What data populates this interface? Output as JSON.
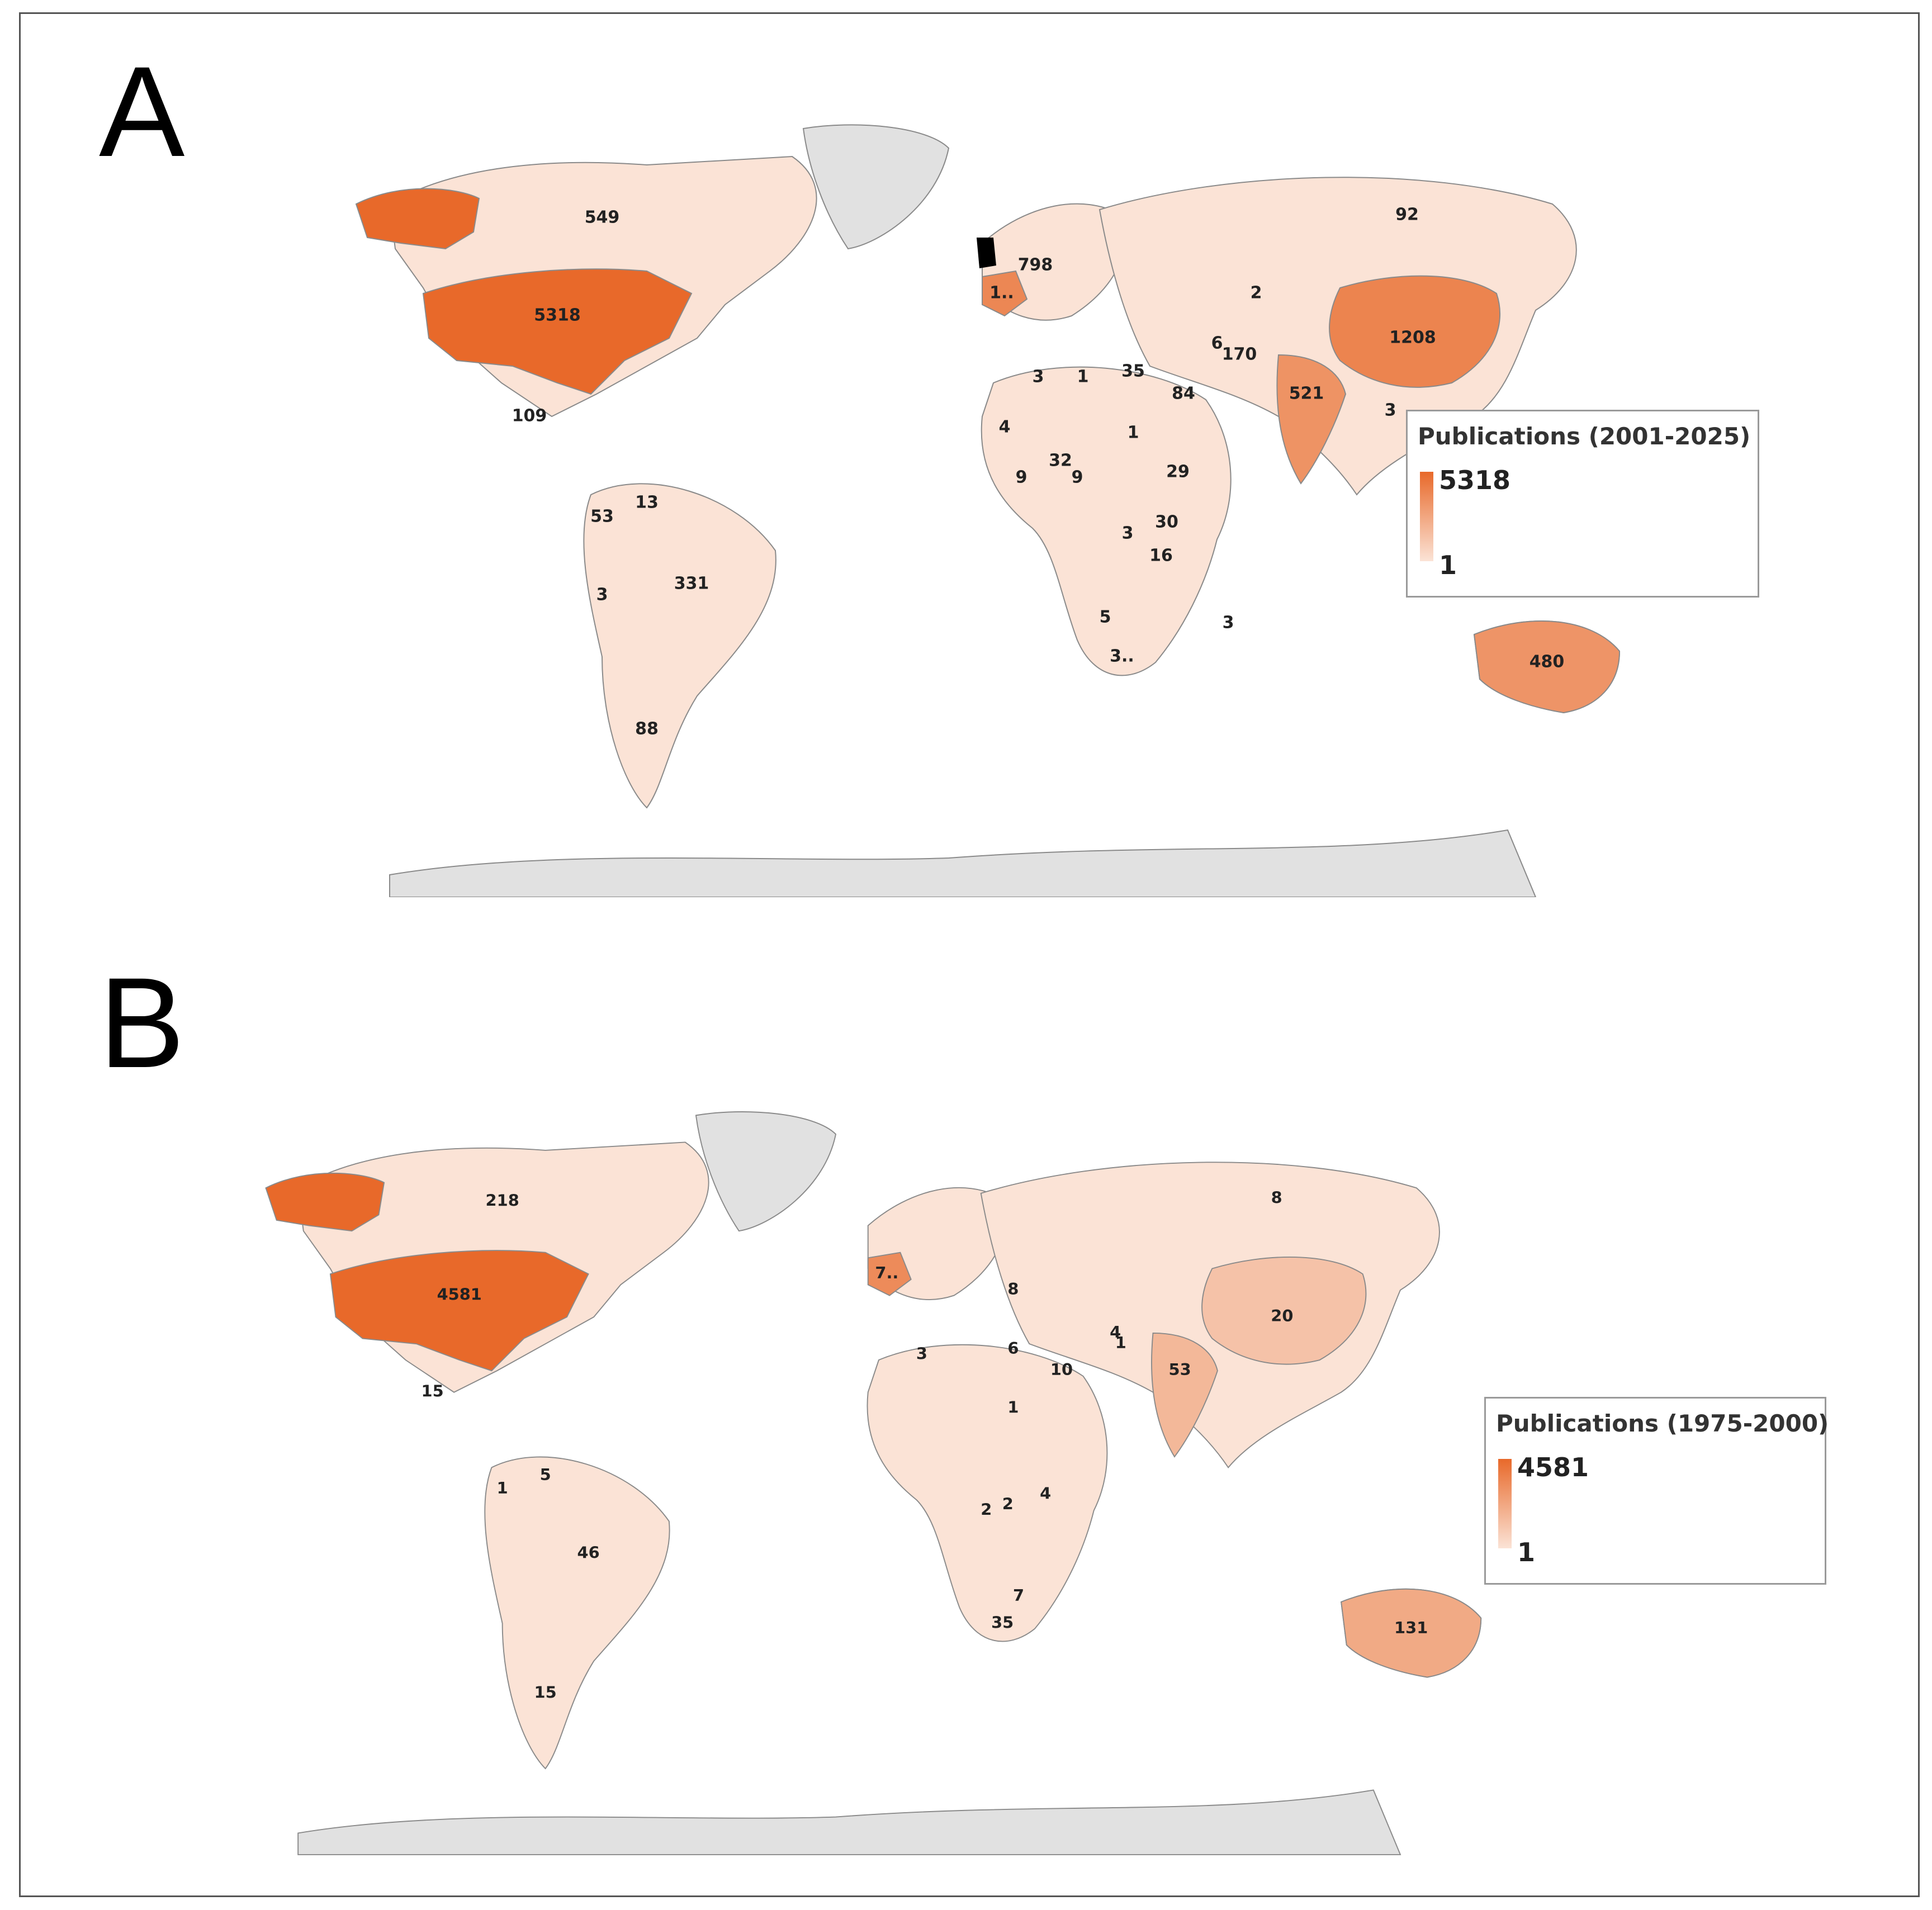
{
  "panels": [
    {
      "letter": "A",
      "legend": {
        "title": "Publications (2001-2025)",
        "max": "5318",
        "min": "1"
      },
      "regions": [
        {
          "id": "usa",
          "label": "5318",
          "value": 5318
        },
        {
          "id": "china",
          "label": "1208",
          "value": 1208
        },
        {
          "id": "germany",
          "label": "798",
          "value": 798
        },
        {
          "id": "france",
          "label": "1..",
          "value": 1000
        },
        {
          "id": "canada",
          "label": "549",
          "value": 549
        },
        {
          "id": "india",
          "label": "521",
          "value": 521
        },
        {
          "id": "australia",
          "label": "480",
          "value": 480
        },
        {
          "id": "brazil",
          "label": "331",
          "value": 331
        },
        {
          "id": "iran",
          "label": "170",
          "value": 170
        },
        {
          "id": "mexico",
          "label": "109",
          "value": 109
        },
        {
          "id": "russia",
          "label": "92",
          "value": 92
        },
        {
          "id": "argentina",
          "label": "88",
          "value": 88
        },
        {
          "id": "saudi-arabia",
          "label": "84",
          "value": 84
        },
        {
          "id": "colombia",
          "label": "53",
          "value": 53
        },
        {
          "id": "egypt",
          "label": "35",
          "value": 35
        },
        {
          "id": "nigeria",
          "label": "32",
          "value": 32
        },
        {
          "id": "kenya",
          "label": "30",
          "value": 30
        },
        {
          "id": "ethiopia",
          "label": "29",
          "value": 29
        },
        {
          "id": "tanzania",
          "label": "16",
          "value": 16
        },
        {
          "id": "venezuela",
          "label": "13",
          "value": 13
        },
        {
          "id": "cameroon",
          "label": "9",
          "value": 9
        },
        {
          "id": "ghana",
          "label": "9",
          "value": 9
        },
        {
          "id": "iraq",
          "label": "6",
          "value": 6
        },
        {
          "id": "botswana",
          "label": "5",
          "value": 5
        },
        {
          "id": "mali",
          "label": "4",
          "value": 4
        },
        {
          "id": "algeria",
          "label": "3",
          "value": 3
        },
        {
          "id": "zambia",
          "label": "3",
          "value": 3
        },
        {
          "id": "madagascar",
          "label": "3",
          "value": 3
        },
        {
          "id": "peru",
          "label": "3",
          "value": 3
        },
        {
          "id": "myanmar",
          "label": "3",
          "value": 3
        },
        {
          "id": "south-africa",
          "label": "3..",
          "value": 300
        },
        {
          "id": "kazakhstan",
          "label": "2",
          "value": 2
        },
        {
          "id": "libya",
          "label": "1",
          "value": 1
        },
        {
          "id": "sudan",
          "label": "1",
          "value": 1
        }
      ]
    },
    {
      "letter": "B",
      "legend": {
        "title": "Publications (1975-2000)",
        "max": "4581",
        "min": "1"
      },
      "regions": [
        {
          "id": "usa",
          "label": "4581",
          "value": 4581
        },
        {
          "id": "canada",
          "label": "218",
          "value": 218
        },
        {
          "id": "australia",
          "label": "131",
          "value": 131
        },
        {
          "id": "france",
          "label": "7..",
          "value": 700
        },
        {
          "id": "india",
          "label": "53",
          "value": 53
        },
        {
          "id": "brazil",
          "label": "46",
          "value": 46
        },
        {
          "id": "south-africa",
          "label": "35",
          "value": 35
        },
        {
          "id": "china",
          "label": "20",
          "value": 20
        },
        {
          "id": "mexico",
          "label": "15",
          "value": 15
        },
        {
          "id": "argentina",
          "label": "15",
          "value": 15
        },
        {
          "id": "saudi-arabia",
          "label": "10",
          "value": 10
        },
        {
          "id": "russia",
          "label": "8",
          "value": 8
        },
        {
          "id": "turkey",
          "label": "8",
          "value": 8
        },
        {
          "id": "zimbabwe",
          "label": "7",
          "value": 7
        },
        {
          "id": "egypt",
          "label": "6",
          "value": 6
        },
        {
          "id": "venezuela",
          "label": "5",
          "value": 5
        },
        {
          "id": "iran",
          "label": "4",
          "value": 4
        },
        {
          "id": "kenya",
          "label": "4",
          "value": 4
        },
        {
          "id": "algeria",
          "label": "3",
          "value": 3
        },
        {
          "id": "dr-congo",
          "label": "2",
          "value": 2
        },
        {
          "id": "zambia",
          "label": "2",
          "value": 2
        },
        {
          "id": "colombia",
          "label": "1",
          "value": 1
        },
        {
          "id": "sudan",
          "label": "1",
          "value": 1
        },
        {
          "id": "pakistan",
          "label": "1",
          "value": 1
        }
      ]
    }
  ],
  "colors": {
    "high": "#e8692a",
    "mid": "#f3b696",
    "low": "#fbe3d6",
    "no_data": "#e1e1e1",
    "border": "#8a8a8a"
  }
}
